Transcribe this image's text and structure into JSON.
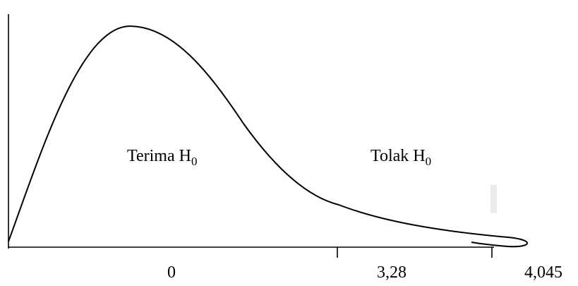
{
  "regions": {
    "accept": {
      "label": "Terima H",
      "subscript": "0"
    },
    "reject": {
      "label": "Tolak H",
      "subscript": "0"
    }
  },
  "axis": {
    "ticks": [
      {
        "label": "0"
      },
      {
        "label": "3,28"
      },
      {
        "label": "4,045"
      }
    ]
  },
  "colors": {
    "line": "#000000",
    "background": "#ffffff",
    "marker": "#ebebeb"
  }
}
